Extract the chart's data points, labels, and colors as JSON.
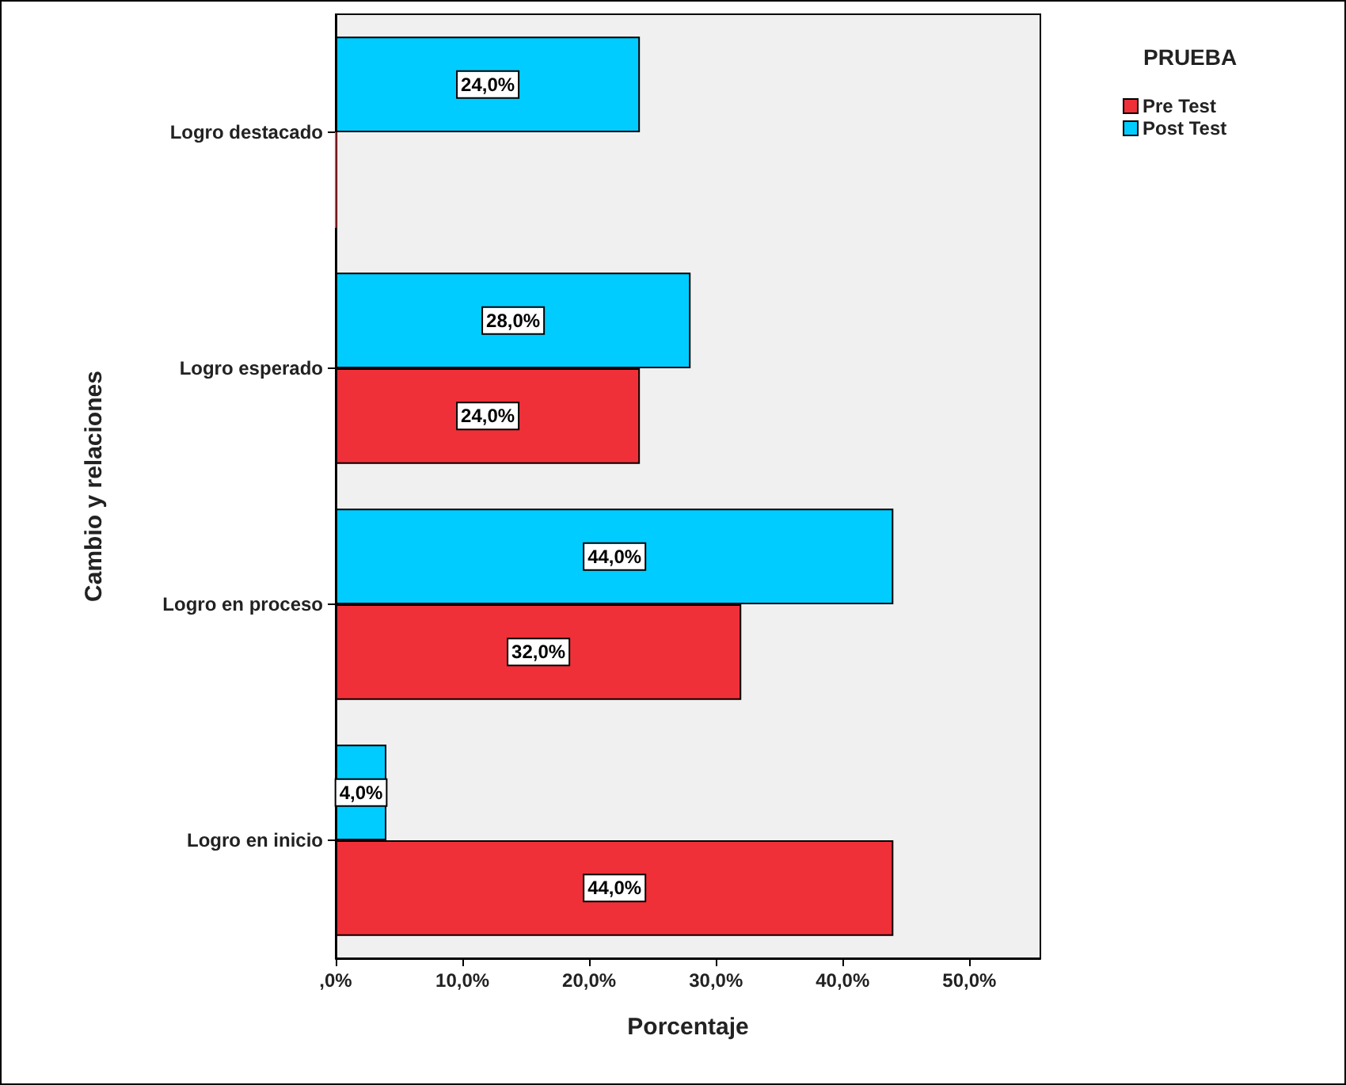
{
  "chart_data": {
    "type": "bar",
    "orientation": "horizontal",
    "xlabel": "Porcentaje",
    "ylabel": "Cambio y relaciones",
    "legend_title": "PRUEBA",
    "categories": [
      "Logro destacado",
      "Logro esperado",
      "Logro en proceso",
      "Logro en inicio"
    ],
    "series": [
      {
        "name": "Post Test",
        "color": "#00ccff",
        "values": [
          24,
          28,
          44,
          4
        ],
        "value_labels": [
          "24,0%",
          "28,0%",
          "44,0%",
          "4,0%"
        ]
      },
      {
        "name": "Pre Test",
        "color": "#ef3038",
        "values": [
          0,
          24,
          32,
          44
        ],
        "value_labels": [
          null,
          "24,0%",
          "32,0%",
          "44,0%"
        ]
      }
    ],
    "xlim": [
      0,
      55.6
    ],
    "xticks": [
      {
        "value": 0,
        "label": ",0%"
      },
      {
        "value": 10,
        "label": "10,0%"
      },
      {
        "value": 20,
        "label": "20,0%"
      },
      {
        "value": 30,
        "label": "30,0%"
      },
      {
        "value": 40,
        "label": "40,0%"
      },
      {
        "value": 50,
        "label": "50,0%"
      }
    ],
    "grid": false,
    "legend": "top right"
  }
}
